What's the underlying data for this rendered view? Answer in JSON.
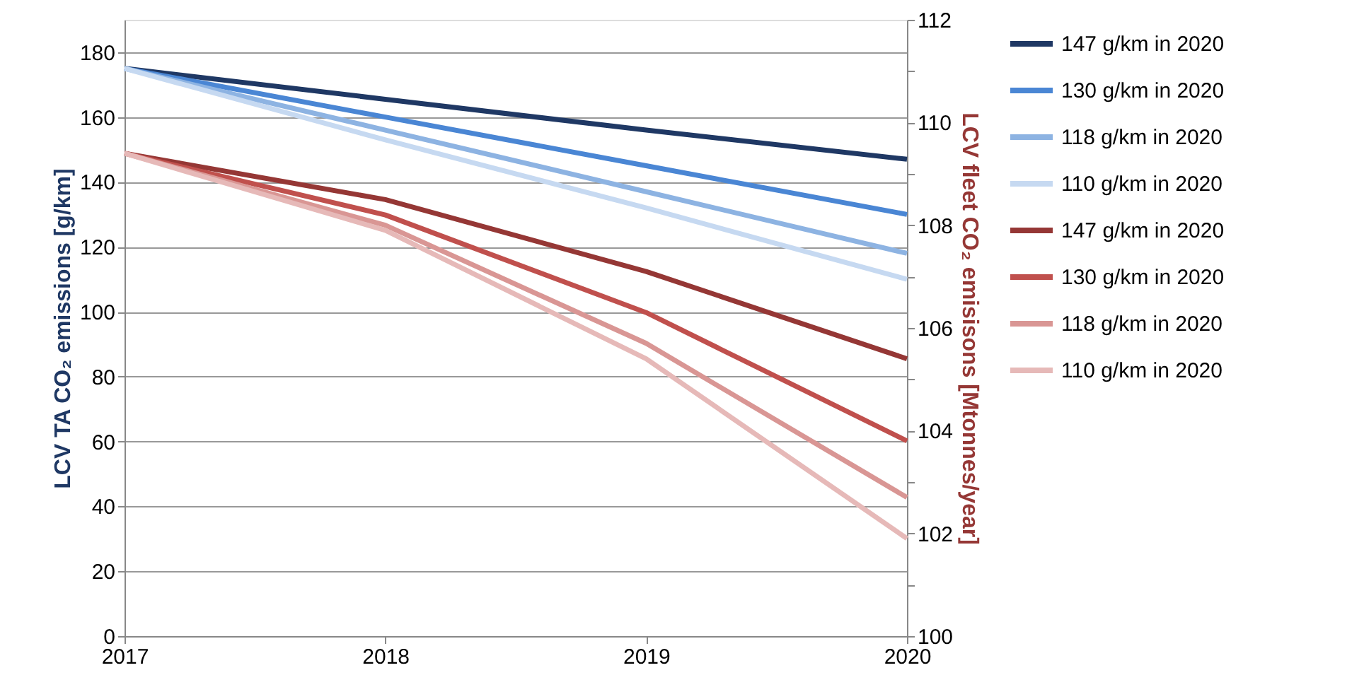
{
  "chart_data": {
    "type": "line",
    "xlabel": null,
    "ylabel": "LCV TA CO₂ emissions [g/km]",
    "y2label": "LCV fleet CO₂ emisisons [Mtonnes/year]",
    "x": [
      2017,
      2018,
      2019,
      2020
    ],
    "xlim": [
      2017,
      2020
    ],
    "xticks": [
      2017,
      2018,
      2019,
      2020
    ],
    "ylim": [
      0,
      190
    ],
    "yticks": [
      0,
      20,
      40,
      60,
      80,
      100,
      120,
      140,
      160,
      180
    ],
    "y2lim": [
      100,
      112
    ],
    "y2ticks": [
      100,
      {
        "value": 101,
        "label": null
      },
      102,
      {
        "value": 103,
        "label": null
      },
      104,
      {
        "value": 105,
        "label": null
      },
      106,
      {
        "value": 107,
        "label": null
      },
      108,
      {
        "value": 109,
        "label": null
      },
      110,
      {
        "value": 111,
        "label": null
      },
      112
    ],
    "grid": "y",
    "legend": "right",
    "marker": "none",
    "line_style": "solid",
    "series": [
      {
        "name": "147 g/km in 2020",
        "color": "#1f3864",
        "values": [
          175,
          165.5,
          156,
          147
        ]
      },
      {
        "name": "130 g/km in 2020",
        "color": "#4a86d4",
        "values": [
          175,
          160,
          145,
          130
        ]
      },
      {
        "name": "118 g/km in 2020",
        "color": "#8db3e2",
        "values": [
          175,
          156,
          137,
          118
        ]
      },
      {
        "name": "110 g/km in 2020",
        "color": "#c6d9f1",
        "values": [
          175,
          153,
          132,
          110
        ]
      },
      {
        "name": "147 g/km in 2020",
        "color": "#953735",
        "axis": "y2",
        "values": [
          109.4,
          108.5,
          107.1,
          105.4
        ]
      },
      {
        "name": "130 g/km in 2020",
        "color": "#c0504d",
        "axis": "y2",
        "values": [
          109.4,
          108.2,
          106.3,
          103.8
        ]
      },
      {
        "name": "118 g/km in 2020",
        "color": "#d99694",
        "axis": "y2",
        "values": [
          109.4,
          108.0,
          105.7,
          102.7
        ]
      },
      {
        "name": "110 g/km in 2020",
        "color": "#e6b9b8",
        "axis": "y2",
        "values": [
          109.4,
          107.9,
          105.4,
          101.9
        ]
      }
    ]
  }
}
